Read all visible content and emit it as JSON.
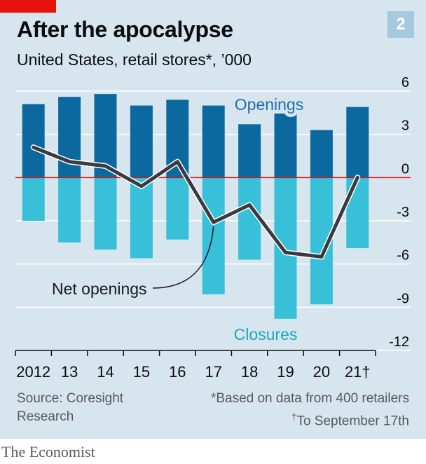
{
  "header": {
    "title": "After the apocalypse",
    "subtitle": "United States, retail stores*, ’000",
    "chart_number": "2"
  },
  "footer": {
    "source_line1": "Source: Coresight",
    "source_line2": "Research",
    "note1": "*Based on data from 400 retailers",
    "note2_mark": "†",
    "note2": "To September 17th"
  },
  "brand": "The Economist",
  "colors": {
    "openings": "#0c69a0",
    "closures": "#37c0d8",
    "net_line": "#3b3b3f",
    "zero_line": "#e3120b",
    "label_openings": "#1d6fa8",
    "label_closures": "#1aa8bf"
  },
  "chart_data": {
    "type": "bar",
    "categories": [
      "2012",
      "13",
      "14",
      "15",
      "16",
      "17",
      "18",
      "19",
      "20",
      "21†"
    ],
    "series": [
      {
        "name": "Openings",
        "values": [
          5.1,
          5.6,
          5.8,
          5.0,
          5.4,
          5.0,
          3.7,
          4.6,
          3.3,
          4.9
        ]
      },
      {
        "name": "Closures",
        "values": [
          -3.0,
          -4.5,
          -5.0,
          -5.6,
          -4.3,
          -8.1,
          -5.7,
          -9.8,
          -8.8,
          -4.9
        ]
      },
      {
        "name": "Net openings",
        "values": [
          2.1,
          1.1,
          0.8,
          -0.6,
          1.1,
          -3.1,
          -1.9,
          -5.2,
          -5.5,
          0.0
        ]
      }
    ],
    "series_labels": {
      "openings": "Openings",
      "closures": "Closures",
      "net": "Net openings"
    },
    "yticks": [
      "6",
      "3",
      "0",
      "-3",
      "-6",
      "-9",
      "-12"
    ],
    "ylim": [
      -12,
      6
    ],
    "grid": true
  }
}
